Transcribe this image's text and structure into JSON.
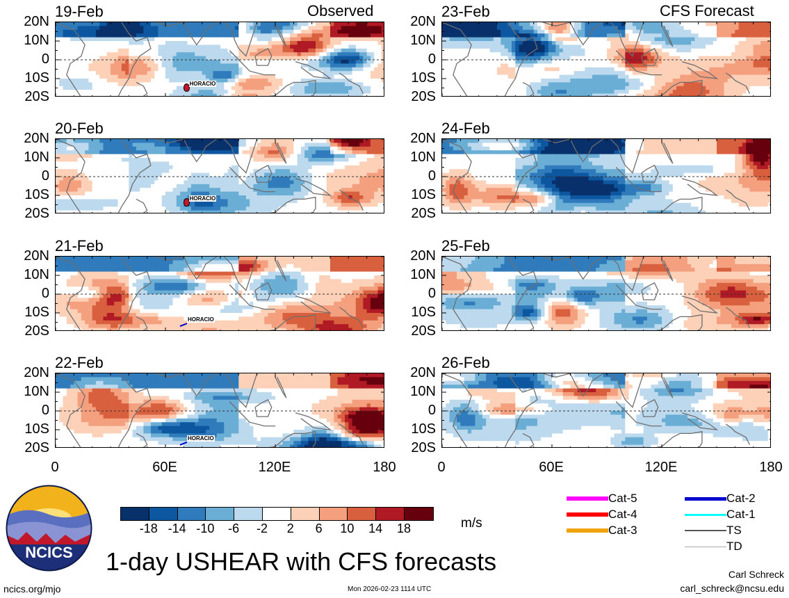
{
  "chart_data": {
    "type": "heatmap",
    "title": "1-day USHEAR with CFS forecasts",
    "variable": "USHEAR",
    "units": "m/s",
    "y_ticks": [
      "20N",
      "10N",
      "0",
      "10S",
      "20S"
    ],
    "x_ticks": [
      "0",
      "60E",
      "120E",
      "180"
    ],
    "xlim": [
      0,
      180
    ],
    "ylim": [
      -20,
      20
    ],
    "observed_header": "Observed",
    "forecast_header": "CFS Forecast",
    "observed_panels": [
      {
        "date": "19-Feb",
        "storm": {
          "name": "HORACIO",
          "lon": 72,
          "lat": -15,
          "category": "Cat-4"
        }
      },
      {
        "date": "20-Feb",
        "storm": {
          "name": "HORACIO",
          "lon": 72,
          "lat": -14,
          "category": "Cat-4"
        }
      },
      {
        "date": "21-Feb",
        "storm": {
          "name": "HORACIO",
          "lon": 71,
          "lat": -16,
          "category": "Cat-2"
        }
      },
      {
        "date": "22-Feb",
        "storm": {
          "name": "HORACIO",
          "lon": 71,
          "lat": -17,
          "category": "Cat-2"
        }
      }
    ],
    "forecast_panels": [
      {
        "date": "23-Feb"
      },
      {
        "date": "24-Feb"
      },
      {
        "date": "25-Feb"
      },
      {
        "date": "26-Feb"
      }
    ],
    "colorbar": {
      "ticks": [
        "-18",
        "-14",
        "-10",
        "-6",
        "-2",
        "2",
        "6",
        "10",
        "14",
        "18"
      ],
      "colors": [
        "#08306b",
        "#0d57a1",
        "#2f7bbc",
        "#6aaed6",
        "#bdd9ee",
        "#ffffff",
        "#fdd0b8",
        "#f4a07f",
        "#d9603f",
        "#b01a25",
        "#67000d"
      ]
    },
    "legend": [
      {
        "label": "Cat-5",
        "color": "#ff00ff",
        "width": 6
      },
      {
        "label": "Cat-4",
        "color": "#ff0000",
        "width": 6
      },
      {
        "label": "Cat-3",
        "color": "#f0a30a",
        "width": 6
      },
      {
        "label": "Cat-2",
        "color": "#0000d0",
        "width": 5
      },
      {
        "label": "Cat-1",
        "color": "#00ffff",
        "width": 3
      },
      {
        "label": "TS",
        "color": "#555555",
        "width": 2
      },
      {
        "label": "TD",
        "color": "#aaaaaa",
        "width": 1
      }
    ]
  },
  "footer": {
    "site": "ncics.org/mjo",
    "timestamp": "Mon 2026-02-23 1114 UTC",
    "author": "Carl Schreck",
    "email": "carl_schreck@ncsu.edu",
    "logo_text": "NCICS"
  }
}
